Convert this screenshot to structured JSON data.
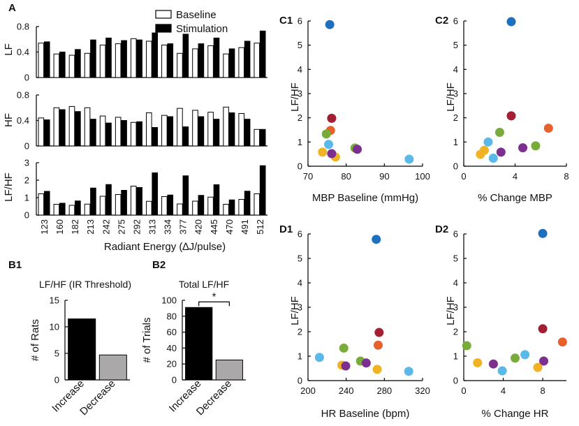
{
  "figure": {
    "colors": {
      "baseline_fill": "#ffffff",
      "stimulation_fill": "#000000",
      "increase_fill": "#000000",
      "decrease_fill": "#aaa8a8"
    }
  },
  "chart_data": [
    {
      "id": "A",
      "panel_label": "A",
      "type": "bar",
      "xlabel": "Radiant Energy (∆J/pulse)",
      "categories": [
        "123",
        "160",
        "182",
        "213",
        "242",
        "275",
        "292",
        "313",
        "334",
        "377",
        "420",
        "445",
        "470",
        "491",
        "512"
      ],
      "legend": [
        "Baseline",
        "Stimulation"
      ],
      "legend_position": "top-right",
      "subplots": [
        {
          "ylabel": "LF",
          "ylim": [
            0,
            0.8
          ],
          "yticks": [
            "0",
            "0.4",
            "0.8"
          ],
          "ytick_values": [
            0,
            0.4,
            0.8
          ],
          "series": [
            {
              "name": "Baseline",
              "values": [
                0.54,
                0.37,
                0.35,
                0.38,
                0.51,
                0.53,
                0.61,
                0.57,
                0.51,
                0.38,
                0.45,
                0.5,
                0.37,
                0.47,
                0.54
              ]
            },
            {
              "name": "Stimulation",
              "values": [
                0.56,
                0.4,
                0.44,
                0.59,
                0.62,
                0.58,
                0.59,
                0.7,
                0.53,
                0.68,
                0.53,
                0.62,
                0.45,
                0.57,
                0.73
              ]
            }
          ]
        },
        {
          "ylabel": "HF",
          "ylim": [
            0,
            0.8
          ],
          "yticks": [
            "0",
            "0.4",
            "0.8"
          ],
          "ytick_values": [
            0,
            0.4,
            0.8
          ],
          "series": [
            {
              "name": "Baseline",
              "values": [
                0.44,
                0.6,
                0.62,
                0.6,
                0.47,
                0.45,
                0.37,
                0.52,
                0.48,
                0.59,
                0.56,
                0.53,
                0.61,
                0.51,
                0.26
              ]
            },
            {
              "name": "Stimulation",
              "values": [
                0.41,
                0.57,
                0.54,
                0.42,
                0.36,
                0.4,
                0.38,
                0.29,
                0.46,
                0.3,
                0.46,
                0.42,
                0.52,
                0.42,
                0.26
              ]
            }
          ]
        },
        {
          "ylabel": "LF/HF",
          "ylim": [
            0,
            3
          ],
          "yticks": [
            "0",
            "1",
            "2",
            "3"
          ],
          "ytick_values": [
            0,
            1,
            2,
            3
          ],
          "series": [
            {
              "name": "Baseline",
              "values": [
                1.22,
                0.62,
                0.56,
                0.63,
                1.08,
                1.18,
                1.66,
                0.79,
                1.06,
                0.64,
                0.8,
                1.03,
                0.62,
                0.9,
                1.22
              ]
            },
            {
              "name": "Stimulation",
              "values": [
                1.36,
                0.68,
                0.81,
                1.55,
                1.75,
                1.42,
                1.58,
                2.42,
                1.15,
                2.25,
                1.13,
                1.74,
                0.87,
                1.37,
                2.83
              ]
            }
          ]
        }
      ]
    },
    {
      "id": "B1",
      "panel_label": "B1",
      "type": "bar",
      "title": "LF/HF (IR Threshold)",
      "ylabel": "# of Rats",
      "categories": [
        "Increase",
        "Decrease"
      ],
      "values": [
        11.5,
        4.7
      ],
      "ylim": [
        0,
        15
      ],
      "yticks": [
        "0",
        "5",
        "10",
        "15"
      ],
      "ytick_values": [
        0,
        5,
        10,
        15
      ]
    },
    {
      "id": "B2",
      "panel_label": "B2",
      "type": "bar",
      "title": "Total LF/HF",
      "ylabel": "# of Trials",
      "categories": [
        "Increase",
        "Decrease"
      ],
      "values": [
        91,
        25
      ],
      "ylim": [
        0,
        100
      ],
      "yticks": [
        "0",
        "20",
        "40",
        "60",
        "80",
        "100"
      ],
      "ytick_values": [
        0,
        20,
        40,
        60,
        80,
        100
      ],
      "annotation": "*"
    },
    {
      "id": "C1",
      "panel_label": "C1",
      "type": "scatter",
      "xlabel": "MBP Baseline (mmHg)",
      "ylabel": "LF/HF",
      "xlim": [
        70,
        100
      ],
      "ylim": [
        0,
        6
      ],
      "xticks": [
        "70",
        "80",
        "90",
        "100"
      ],
      "xtick_values": [
        70,
        80,
        90,
        100
      ],
      "yticks": [
        "0",
        "1",
        "2",
        "3",
        "4",
        "5",
        "6"
      ],
      "ytick_values": [
        0,
        1,
        2,
        3,
        4,
        5,
        6
      ],
      "points": [
        {
          "x": 75.7,
          "y": 5.85,
          "color": "#1f6fbf"
        },
        {
          "x": 76.2,
          "y": 1.98,
          "color": "#a31f34"
        },
        {
          "x": 75.9,
          "y": 1.48,
          "color": "#e8602c"
        },
        {
          "x": 74.8,
          "y": 1.33,
          "color": "#78ab3a"
        },
        {
          "x": 75.4,
          "y": 0.9,
          "color": "#5ab9e8"
        },
        {
          "x": 73.8,
          "y": 0.58,
          "color": "#f0b323"
        },
        {
          "x": 77.2,
          "y": 0.38,
          "color": "#f0b323"
        },
        {
          "x": 76.2,
          "y": 0.52,
          "color": "#7b2f8e"
        },
        {
          "x": 82.3,
          "y": 0.75,
          "color": "#78ab3a"
        },
        {
          "x": 82.9,
          "y": 0.7,
          "color": "#7b2f8e"
        },
        {
          "x": 96.5,
          "y": 0.29,
          "color": "#5ab9e8"
        }
      ]
    },
    {
      "id": "C2",
      "panel_label": "C2",
      "type": "scatter",
      "xlabel": "% Change MBP",
      "ylabel": "LF/HF",
      "xlim": [
        0,
        8
      ],
      "ylim": [
        0,
        6
      ],
      "xticks": [
        "0",
        "4",
        "8"
      ],
      "xtick_values": [
        0,
        4,
        8
      ],
      "yticks": [
        "0",
        "1",
        "2",
        "3",
        "4",
        "5",
        "6"
      ],
      "ytick_values": [
        0,
        1,
        2,
        3,
        4,
        5,
        6
      ],
      "points": [
        {
          "x": 3.7,
          "y": 5.97,
          "color": "#1f6fbf"
        },
        {
          "x": 3.7,
          "y": 2.08,
          "color": "#a31f34"
        },
        {
          "x": 6.6,
          "y": 1.57,
          "color": "#e8602c"
        },
        {
          "x": 2.8,
          "y": 1.4,
          "color": "#78ab3a"
        },
        {
          "x": 1.9,
          "y": 1.0,
          "color": "#5ab9e8"
        },
        {
          "x": 5.6,
          "y": 0.84,
          "color": "#78ab3a"
        },
        {
          "x": 4.6,
          "y": 0.76,
          "color": "#7b2f8e"
        },
        {
          "x": 1.6,
          "y": 0.66,
          "color": "#f0b323"
        },
        {
          "x": 2.9,
          "y": 0.58,
          "color": "#7b2f8e"
        },
        {
          "x": 1.3,
          "y": 0.49,
          "color": "#f0b323"
        },
        {
          "x": 2.3,
          "y": 0.33,
          "color": "#5ab9e8"
        }
      ]
    },
    {
      "id": "D1",
      "panel_label": "D1",
      "type": "scatter",
      "xlabel": "HR Baseline (bpm)",
      "ylabel": "LF/HF",
      "xlim": [
        200,
        320
      ],
      "ylim": [
        0,
        6
      ],
      "xticks": [
        "200",
        "240",
        "280",
        "320"
      ],
      "xtick_values": [
        200,
        240,
        280,
        320
      ],
      "yticks": [
        "0",
        "1",
        "2",
        "3",
        "4",
        "5",
        "6"
      ],
      "ytick_values": [
        0,
        1,
        2,
        3,
        4,
        5,
        6
      ],
      "points": [
        {
          "x": 271.5,
          "y": 5.78,
          "color": "#1f6fbf"
        },
        {
          "x": 274.5,
          "y": 1.97,
          "color": "#a31f34"
        },
        {
          "x": 273.5,
          "y": 1.45,
          "color": "#e8602c"
        },
        {
          "x": 237.5,
          "y": 1.33,
          "color": "#78ab3a"
        },
        {
          "x": 212.0,
          "y": 0.95,
          "color": "#5ab9e8"
        },
        {
          "x": 255.0,
          "y": 0.8,
          "color": "#78ab3a"
        },
        {
          "x": 261.0,
          "y": 0.72,
          "color": "#7b2f8e"
        },
        {
          "x": 235.5,
          "y": 0.63,
          "color": "#f0b323"
        },
        {
          "x": 239.5,
          "y": 0.6,
          "color": "#7b2f8e"
        },
        {
          "x": 272.5,
          "y": 0.46,
          "color": "#f0b323"
        },
        {
          "x": 305.5,
          "y": 0.38,
          "color": "#5ab9e8"
        }
      ]
    },
    {
      "id": "D2",
      "panel_label": "D2",
      "type": "scatter",
      "xlabel": "% Change HR",
      "ylabel": "LF/HF",
      "xlim": [
        0,
        10.4
      ],
      "ylim": [
        0,
        6
      ],
      "xticks": [
        "0",
        "4",
        "8"
      ],
      "xtick_values": [
        0,
        4,
        8
      ],
      "yticks": [
        "0",
        "1",
        "2",
        "3",
        "4",
        "5",
        "6"
      ],
      "ytick_values": [
        0,
        1,
        2,
        3,
        4,
        5,
        6
      ],
      "points": [
        {
          "x": 8.0,
          "y": 6.02,
          "color": "#1f6fbf"
        },
        {
          "x": 8.0,
          "y": 2.12,
          "color": "#a31f34"
        },
        {
          "x": 10.0,
          "y": 1.58,
          "color": "#e8602c"
        },
        {
          "x": 0.3,
          "y": 1.43,
          "color": "#78ab3a"
        },
        {
          "x": 6.2,
          "y": 1.06,
          "color": "#5ab9e8"
        },
        {
          "x": 5.2,
          "y": 0.92,
          "color": "#78ab3a"
        },
        {
          "x": 8.1,
          "y": 0.8,
          "color": "#7b2f8e"
        },
        {
          "x": 1.4,
          "y": 0.73,
          "color": "#f0b323"
        },
        {
          "x": 3.0,
          "y": 0.68,
          "color": "#7b2f8e"
        },
        {
          "x": 7.5,
          "y": 0.54,
          "color": "#f0b323"
        },
        {
          "x": 3.9,
          "y": 0.4,
          "color": "#5ab9e8"
        }
      ]
    }
  ]
}
